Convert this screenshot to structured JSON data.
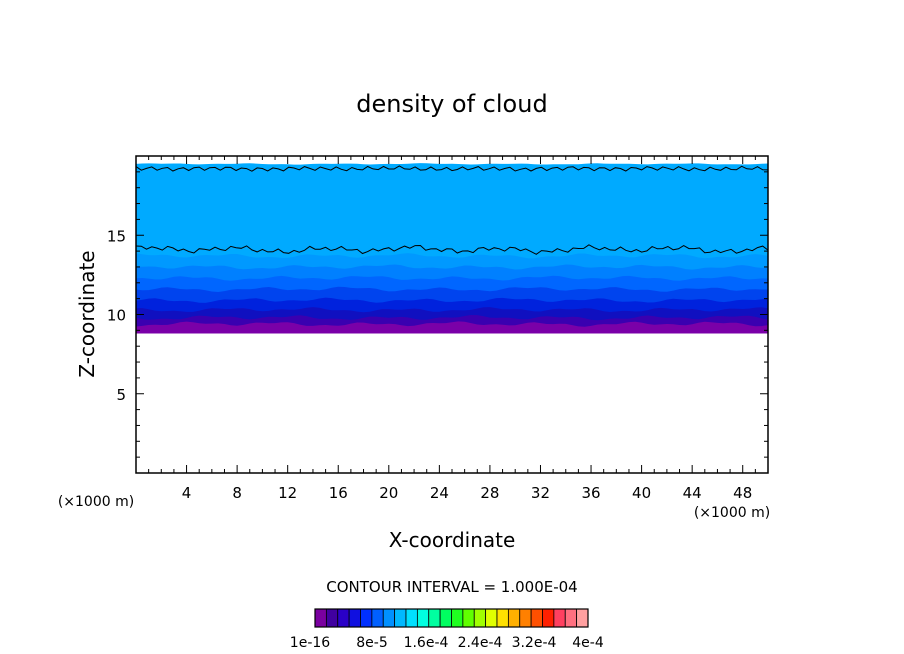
{
  "chart_data": {
    "type": "heatmap",
    "title": "density of cloud",
    "xlabel": "X-coordinate",
    "ylabel": "Z-coordinate",
    "x_unit_left": "(×1000 m)",
    "x_unit_right": "(×1000 m)",
    "xlim": [
      0,
      50
    ],
    "ylim": [
      0,
      20
    ],
    "x_ticks": [
      4,
      8,
      12,
      16,
      20,
      24,
      28,
      32,
      36,
      40,
      44,
      48
    ],
    "y_ticks": [
      5,
      10,
      15
    ],
    "contour_interval_text": "CONTOUR INTERVAL = 1.000E-04",
    "colorbar": {
      "colors": [
        "#7a00a0",
        "#4000a0",
        "#2a00c8",
        "#1010e0",
        "#0030ff",
        "#0060ff",
        "#0090ff",
        "#00b8ff",
        "#00e0ff",
        "#00ffe0",
        "#00ffa0",
        "#00ff60",
        "#20ff20",
        "#60ff00",
        "#a0ff00",
        "#e0ff00",
        "#ffe000",
        "#ffb000",
        "#ff8000",
        "#ff5000",
        "#ff2000",
        "#ff4060",
        "#ff7080",
        "#ffa0a0"
      ],
      "labels": [
        "1e-16",
        "8e-5",
        "1.6e-4",
        "2.4e-4",
        "3.2e-4",
        "4e-4"
      ]
    },
    "bands": [
      {
        "z_top": 19.5,
        "color": "#00aaff"
      },
      {
        "z_top": 13.7,
        "color": "#0099ff"
      },
      {
        "z_top": 13.0,
        "color": "#0080ff"
      },
      {
        "z_top": 12.3,
        "color": "#0066ff"
      },
      {
        "z_top": 11.6,
        "color": "#0044ee"
      },
      {
        "z_top": 10.9,
        "color": "#0022dd"
      },
      {
        "z_top": 10.3,
        "color": "#1010c0"
      },
      {
        "z_top": 9.8,
        "color": "#3a00b0"
      },
      {
        "z_top": 9.4,
        "color": "#7a00a8"
      }
    ],
    "cloud_base_z": 8.8
  }
}
